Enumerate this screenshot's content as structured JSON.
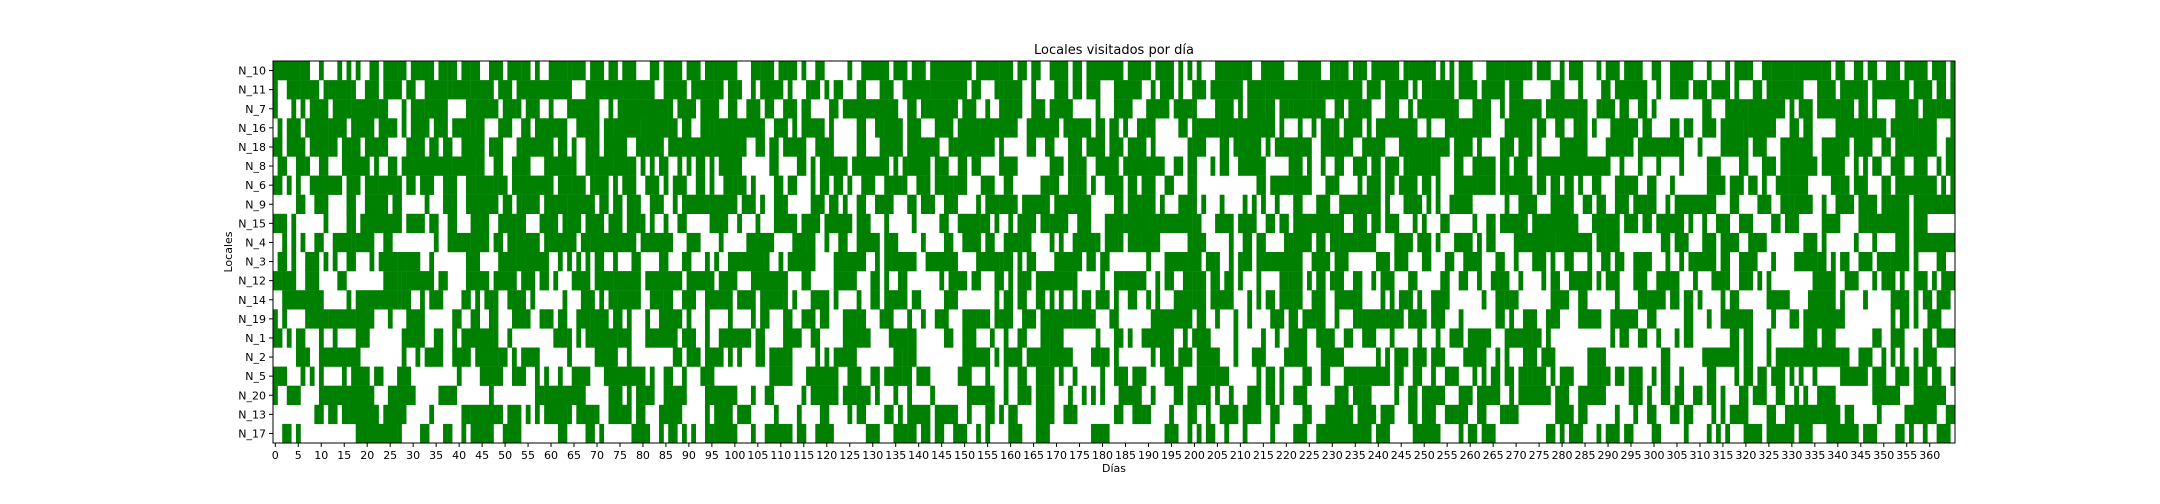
{
  "chart_data": {
    "type": "heatmap",
    "title": "Locales visitados por día",
    "xlabel": "Días",
    "ylabel": "Locales",
    "xlim": [
      0,
      365
    ],
    "x_ticks": [
      0,
      5,
      10,
      15,
      20,
      25,
      30,
      35,
      40,
      45,
      50,
      55,
      60,
      65,
      70,
      75,
      80,
      85,
      90,
      95,
      100,
      105,
      110,
      115,
      120,
      125,
      130,
      135,
      140,
      145,
      150,
      155,
      160,
      165,
      170,
      175,
      180,
      185,
      190,
      195,
      200,
      205,
      210,
      215,
      220,
      225,
      230,
      235,
      240,
      245,
      250,
      255,
      260,
      265,
      270,
      275,
      280,
      285,
      290,
      295,
      300,
      305,
      310,
      315,
      320,
      325,
      330,
      335,
      340,
      345,
      350,
      355,
      360
    ],
    "locales": [
      "N_10",
      "N_11",
      "N_7",
      "N_16",
      "N_18",
      "N_8",
      "N_6",
      "N_9",
      "N_15",
      "N_4",
      "N_3",
      "N_12",
      "N_14",
      "N_19",
      "N_1",
      "N_2",
      "N_5",
      "N_20",
      "N_13",
      "N_17"
    ],
    "visited_fraction": [
      0.62,
      0.58,
      0.56,
      0.6,
      0.55,
      0.5,
      0.52,
      0.48,
      0.46,
      0.42,
      0.4,
      0.4,
      0.42,
      0.4,
      0.38,
      0.37,
      0.36,
      0.35,
      0.36,
      0.34
    ],
    "visit_color": "#008000",
    "empty_color": "#ffffff",
    "grid": false
  }
}
